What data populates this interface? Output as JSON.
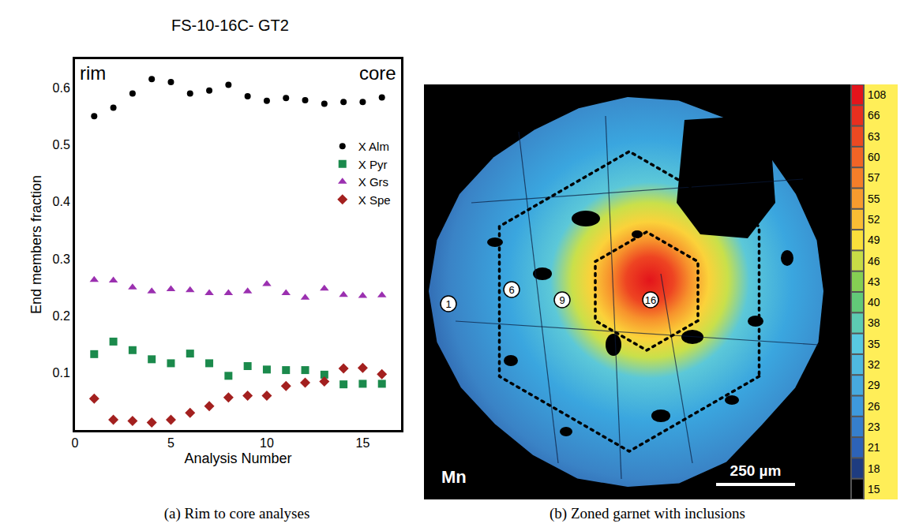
{
  "chart_data": {
    "type": "scatter",
    "title": "FS-10-16C- GT2",
    "x_label": "Analysis Number",
    "y_label": "End members fraction",
    "annotations": [
      "rim",
      "core"
    ],
    "x": [
      1,
      2,
      3,
      4,
      5,
      6,
      7,
      8,
      9,
      10,
      11,
      12,
      13,
      14,
      15,
      16
    ],
    "series": [
      {
        "name": "X Alm",
        "color": "#000000",
        "marker": "circle",
        "values": [
          0.55,
          0.565,
          0.59,
          0.615,
          0.61,
          0.59,
          0.595,
          0.605,
          0.585,
          0.577,
          0.582,
          0.578,
          0.572,
          0.575,
          0.575,
          0.583
        ]
      },
      {
        "name": "X Pyr",
        "color": "#1b8a4c",
        "marker": "square",
        "values": [
          0.133,
          0.155,
          0.14,
          0.124,
          0.117,
          0.134,
          0.117,
          0.095,
          0.112,
          0.106,
          0.105,
          0.105,
          0.097,
          0.08,
          0.081,
          0.081
        ]
      },
      {
        "name": "X Grs",
        "color": "#9b30b0",
        "marker": "triangle-up",
        "values": [
          0.263,
          0.262,
          0.25,
          0.243,
          0.247,
          0.245,
          0.24,
          0.24,
          0.243,
          0.256,
          0.24,
          0.232,
          0.248,
          0.237,
          0.235,
          0.236
        ]
      },
      {
        "name": "X Spe",
        "color": "#a3201f",
        "marker": "diamond",
        "values": [
          0.055,
          0.018,
          0.016,
          0.013,
          0.018,
          0.03,
          0.042,
          0.057,
          0.06,
          0.06,
          0.077,
          0.083,
          0.085,
          0.108,
          0.109,
          0.098
        ]
      }
    ],
    "xlim": [
      0,
      17
    ],
    "xticks": [
      0,
      5,
      10,
      15
    ],
    "ylim": [
      0,
      0.65
    ],
    "yticks": [
      0.1,
      0.2,
      0.3,
      0.4,
      0.5,
      0.6
    ],
    "grid": false,
    "legend": "upper right"
  },
  "map": {
    "element": "Mn",
    "scale_bar": "250 µm",
    "analysis_points": [
      1,
      6,
      9,
      16
    ],
    "colorbar_labels": [
      108,
      66,
      63,
      60,
      57,
      55,
      52,
      49,
      46,
      43,
      40,
      38,
      35,
      32,
      29,
      26,
      23,
      21,
      18,
      15
    ]
  },
  "captions": [
    "(a) Rim to core analyses",
    "(b) Zoned garnet with inclusions"
  ]
}
